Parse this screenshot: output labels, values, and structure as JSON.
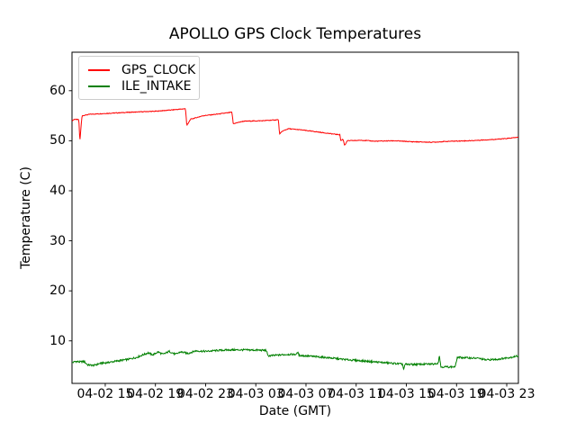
{
  "chart_data": {
    "type": "line",
    "title": "APOLLO GPS Clock Temperatures",
    "xlabel": "Date (GMT)",
    "ylabel": "Temperature (C)",
    "x_encoding": "hours since 04-02 00:00 GMT",
    "xlim": [
      12.35,
      47.93
    ],
    "ylim": [
      1.5,
      67.7
    ],
    "x_ticks": [
      {
        "h": 15,
        "label": "04-02 15"
      },
      {
        "h": 19,
        "label": "04-02 19"
      },
      {
        "h": 23,
        "label": "04-02 23"
      },
      {
        "h": 27,
        "label": "04-03 03"
      },
      {
        "h": 31,
        "label": "04-03 07"
      },
      {
        "h": 35,
        "label": "04-03 11"
      },
      {
        "h": 39,
        "label": "04-03 15"
      },
      {
        "h": 43,
        "label": "04-03 19"
      },
      {
        "h": 47,
        "label": "04-03 23"
      }
    ],
    "y_ticks": [
      10,
      20,
      30,
      40,
      50,
      60
    ],
    "grid": false,
    "frame_color": "#000000",
    "legend": {
      "position": "upper-left"
    },
    "series": [
      {
        "name": "GPS_CLOCK",
        "color": "#ff0000",
        "noise": 0.07,
        "points": [
          [
            12.35,
            54.0
          ],
          [
            12.55,
            54.3
          ],
          [
            12.9,
            54.2
          ],
          [
            12.97,
            49.8
          ],
          [
            13.15,
            55.0
          ],
          [
            13.8,
            55.3
          ],
          [
            15.0,
            55.45
          ],
          [
            17.0,
            55.7
          ],
          [
            19.0,
            55.9
          ],
          [
            20.5,
            56.2
          ],
          [
            21.4,
            56.4
          ],
          [
            21.5,
            53.0
          ],
          [
            21.8,
            54.3
          ],
          [
            22.8,
            55.0
          ],
          [
            24.2,
            55.4
          ],
          [
            25.1,
            55.7
          ],
          [
            25.2,
            53.4
          ],
          [
            26.0,
            53.9
          ],
          [
            27.5,
            54.0
          ],
          [
            28.8,
            54.2
          ],
          [
            28.9,
            51.3
          ],
          [
            29.1,
            51.9
          ],
          [
            29.6,
            52.4
          ],
          [
            30.5,
            52.2
          ],
          [
            31.8,
            51.8
          ],
          [
            33.3,
            51.3
          ],
          [
            33.7,
            51.2
          ],
          [
            33.78,
            50.0
          ],
          [
            33.95,
            50.3
          ],
          [
            34.08,
            49.1
          ],
          [
            34.3,
            50.0
          ],
          [
            35.5,
            50.1
          ],
          [
            36.5,
            49.9
          ],
          [
            38.0,
            50.0
          ],
          [
            39.5,
            49.8
          ],
          [
            41.0,
            49.7
          ],
          [
            42.5,
            49.9
          ],
          [
            44.0,
            50.0
          ],
          [
            45.5,
            50.2
          ],
          [
            46.8,
            50.4
          ],
          [
            47.93,
            50.7
          ]
        ]
      },
      {
        "name": "ILE_INTAKE",
        "color": "#008000",
        "noise": 0.18,
        "points": [
          [
            12.35,
            5.6
          ],
          [
            12.6,
            5.9
          ],
          [
            13.0,
            5.8
          ],
          [
            13.3,
            5.9
          ],
          [
            13.6,
            5.2
          ],
          [
            14.1,
            5.1
          ],
          [
            14.6,
            5.5
          ],
          [
            15.3,
            5.7
          ],
          [
            16.0,
            6.0
          ],
          [
            16.8,
            6.3
          ],
          [
            17.5,
            6.7
          ],
          [
            18.0,
            7.2
          ],
          [
            18.4,
            7.6
          ],
          [
            18.8,
            7.2
          ],
          [
            19.2,
            7.8
          ],
          [
            19.6,
            7.3
          ],
          [
            20.1,
            7.9
          ],
          [
            20.6,
            7.3
          ],
          [
            21.0,
            7.8
          ],
          [
            21.6,
            7.5
          ],
          [
            22.2,
            8.0
          ],
          [
            23.0,
            7.9
          ],
          [
            24.0,
            8.1
          ],
          [
            25.0,
            8.2
          ],
          [
            26.0,
            8.2
          ],
          [
            27.0,
            8.15
          ],
          [
            27.85,
            8.1
          ],
          [
            27.95,
            7.0
          ],
          [
            28.5,
            7.1
          ],
          [
            29.5,
            7.3
          ],
          [
            30.25,
            7.3
          ],
          [
            30.32,
            7.8
          ],
          [
            30.45,
            7.1
          ],
          [
            31.5,
            6.9
          ],
          [
            32.5,
            6.7
          ],
          [
            34.0,
            6.3
          ],
          [
            35.5,
            6.0
          ],
          [
            37.0,
            5.7
          ],
          [
            38.0,
            5.5
          ],
          [
            38.7,
            5.35
          ],
          [
            38.78,
            4.2
          ],
          [
            38.9,
            5.3
          ],
          [
            40.0,
            5.3
          ],
          [
            41.2,
            5.4
          ],
          [
            41.55,
            5.6
          ],
          [
            41.62,
            7.3
          ],
          [
            41.75,
            4.8
          ],
          [
            42.9,
            4.8
          ],
          [
            43.05,
            6.7
          ],
          [
            44.0,
            6.6
          ],
          [
            44.8,
            6.5
          ],
          [
            45.3,
            6.2
          ],
          [
            46.2,
            6.3
          ],
          [
            47.0,
            6.6
          ],
          [
            47.5,
            6.8
          ],
          [
            47.93,
            7.0
          ]
        ]
      }
    ]
  }
}
